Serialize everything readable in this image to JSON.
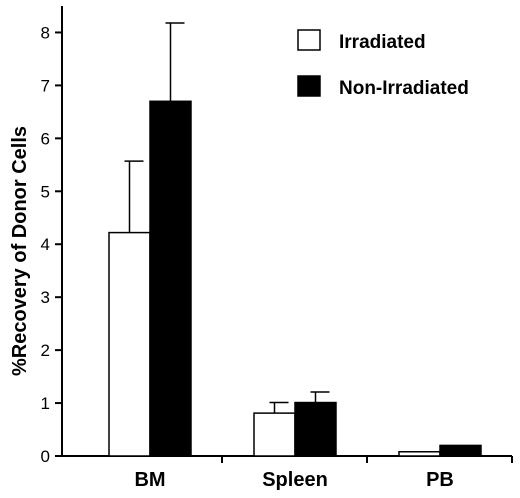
{
  "chart_data": {
    "type": "bar",
    "title": "",
    "xlabel": "",
    "ylabel": "%Recovery of Donor Cells",
    "ylim": [
      0,
      8.5
    ],
    "yticks": [
      0,
      1,
      2,
      3,
      4,
      5,
      6,
      7,
      8
    ],
    "categories": [
      "BM",
      "Spleen",
      "PB"
    ],
    "series": [
      {
        "name": "Irradiated",
        "values": [
          4.22,
          0.81,
          0.08
        ],
        "errors": [
          1.35,
          0.2,
          0
        ],
        "color": "#ffffff"
      },
      {
        "name": "Non-Irradiated",
        "values": [
          6.7,
          1.01,
          0.2
        ],
        "errors": [
          1.48,
          0.2,
          0
        ],
        "color": "#000000"
      }
    ],
    "legend_position": "top-right",
    "grid": false
  }
}
